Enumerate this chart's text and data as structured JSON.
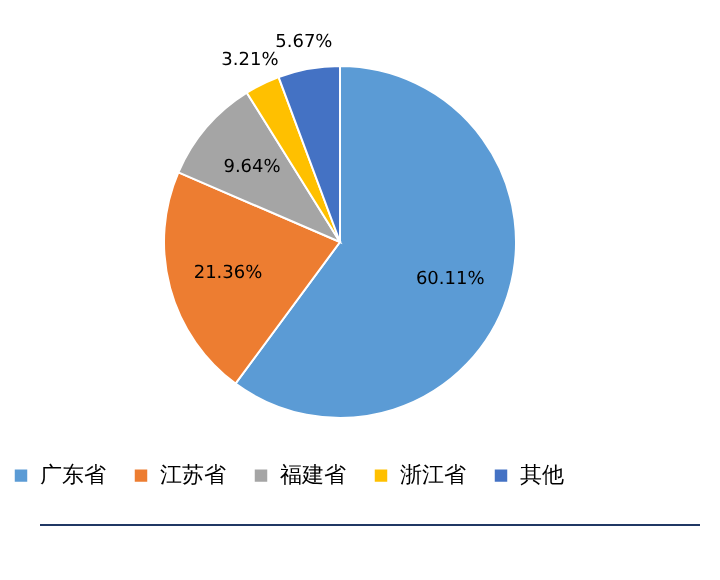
{
  "chart_data": {
    "type": "pie",
    "categories": [
      "广东省",
      "江苏省",
      "福建省",
      "浙江省",
      "其他"
    ],
    "values": [
      60.11,
      21.36,
      9.64,
      3.21,
      5.67
    ],
    "colors": [
      "#5b9bd5",
      "#ed7d31",
      "#a5a5a5",
      "#ffc000",
      "#4472c4"
    ],
    "value_labels": [
      "60.11%",
      "21.36%",
      "9.64%",
      "3.21%",
      "5.67%"
    ],
    "legend": "bottom"
  }
}
